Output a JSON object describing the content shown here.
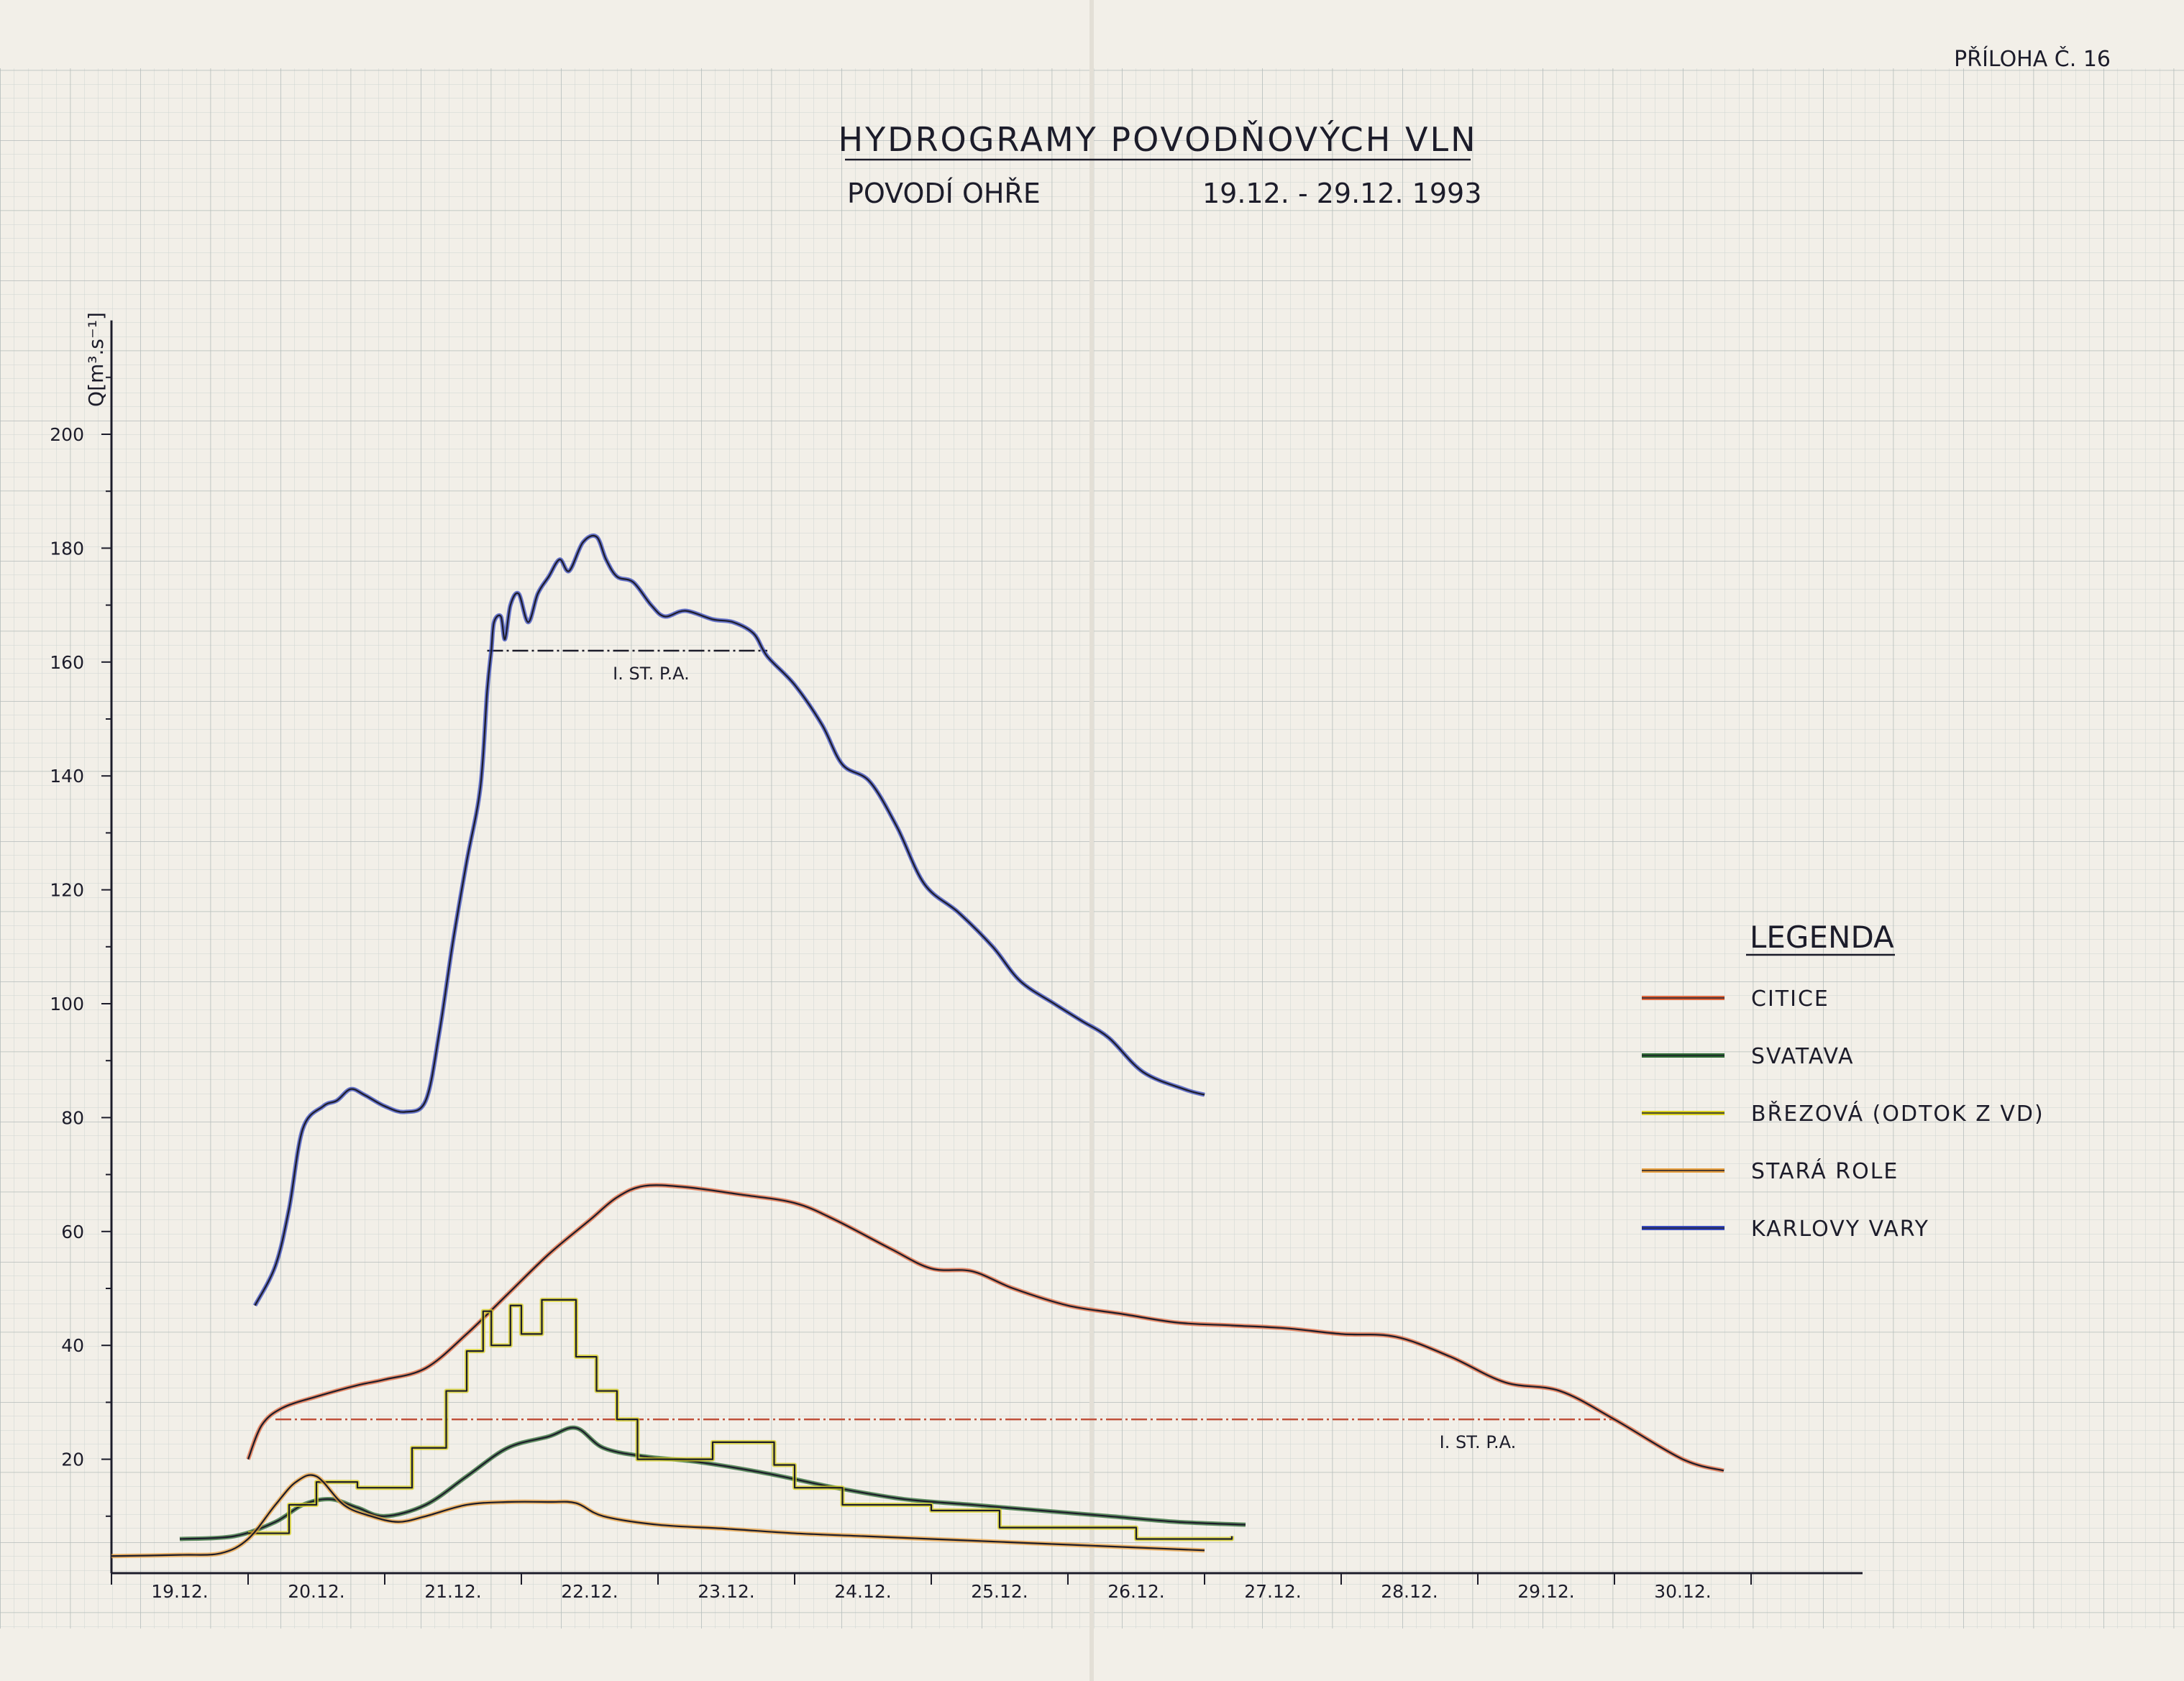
{
  "annex_label": "PŘÍLOHA Č. 16",
  "chart_data": {
    "type": "line",
    "title": "HYDROGRAMY POVODŇOVÝCH VLN",
    "subtitle_left": "POVODÍ OHŘE",
    "subtitle_right": "19.12. - 29.12. 1993",
    "ylabel": "Q[m³.s⁻¹]",
    "xlabel": "",
    "ylim": [
      0,
      200
    ],
    "xlim": [
      0,
      11.0
    ],
    "y_ticks": [
      {
        "value": 20,
        "label": "20"
      },
      {
        "value": 40,
        "label": "40"
      },
      {
        "value": 60,
        "label": "60"
      },
      {
        "value": 80,
        "label": "80"
      },
      {
        "value": 100,
        "label": "100"
      },
      {
        "value": 120,
        "label": "120"
      },
      {
        "value": 140,
        "label": "140"
      },
      {
        "value": 160,
        "label": "160"
      },
      {
        "value": 180,
        "label": "180"
      },
      {
        "value": 200,
        "label": "200"
      }
    ],
    "x_ticks": [
      {
        "pos": 0.5,
        "label": "19.12."
      },
      {
        "pos": 1.5,
        "label": "20.12."
      },
      {
        "pos": 2.5,
        "label": "21.12."
      },
      {
        "pos": 3.5,
        "label": "22.12."
      },
      {
        "pos": 4.5,
        "label": "23.12."
      },
      {
        "pos": 5.5,
        "label": "24.12."
      },
      {
        "pos": 6.5,
        "label": "25.12."
      },
      {
        "pos": 7.5,
        "label": "26.12."
      },
      {
        "pos": 8.5,
        "label": "27.12."
      },
      {
        "pos": 9.5,
        "label": "28.12."
      },
      {
        "pos": 10.5,
        "label": "29.12."
      },
      {
        "pos": 11.5,
        "label": "30.12."
      }
    ],
    "grid": true,
    "legend_title": "LEGENDA",
    "legend_position": "right",
    "series": [
      {
        "name": "CITICE",
        "color": "#e06a40",
        "style": "smooth",
        "points": [
          [
            1.0,
            20
          ],
          [
            1.1,
            26
          ],
          [
            1.25,
            29
          ],
          [
            1.5,
            31
          ],
          [
            1.8,
            33
          ],
          [
            2.0,
            34
          ],
          [
            2.3,
            36
          ],
          [
            2.6,
            42
          ],
          [
            2.9,
            49
          ],
          [
            3.2,
            56
          ],
          [
            3.5,
            62
          ],
          [
            3.7,
            66
          ],
          [
            3.9,
            68
          ],
          [
            4.2,
            67.8
          ],
          [
            4.6,
            66.5
          ],
          [
            5.0,
            65
          ],
          [
            5.3,
            62
          ],
          [
            5.7,
            57
          ],
          [
            6.0,
            53.5
          ],
          [
            6.3,
            53
          ],
          [
            6.6,
            50
          ],
          [
            7.0,
            47
          ],
          [
            7.4,
            45.5
          ],
          [
            7.8,
            44
          ],
          [
            8.2,
            43.5
          ],
          [
            8.6,
            43
          ],
          [
            9.0,
            42
          ],
          [
            9.4,
            41.5
          ],
          [
            9.8,
            38
          ],
          [
            10.2,
            33.5
          ],
          [
            10.6,
            32
          ],
          [
            11.0,
            27
          ],
          [
            11.5,
            20
          ],
          [
            11.8,
            18
          ]
        ]
      },
      {
        "name": "SVATAVA",
        "color": "#2e6b34",
        "style": "smooth",
        "points": [
          [
            0.5,
            6
          ],
          [
            0.9,
            6.5
          ],
          [
            1.2,
            9
          ],
          [
            1.4,
            12
          ],
          [
            1.6,
            13
          ],
          [
            1.8,
            11.5
          ],
          [
            2.0,
            10
          ],
          [
            2.3,
            12
          ],
          [
            2.6,
            17
          ],
          [
            2.9,
            22
          ],
          [
            3.2,
            24
          ],
          [
            3.4,
            25.5
          ],
          [
            3.6,
            22
          ],
          [
            3.9,
            20.5
          ],
          [
            4.3,
            19.5
          ],
          [
            4.8,
            17.5
          ],
          [
            5.3,
            15
          ],
          [
            5.8,
            13
          ],
          [
            6.3,
            12
          ],
          [
            6.8,
            11
          ],
          [
            7.3,
            10
          ],
          [
            7.8,
            9
          ],
          [
            8.3,
            8.5
          ]
        ]
      },
      {
        "name": "BŘEZOVÁ (ODTOK Z VD)",
        "color": "#d8d020",
        "style": "step",
        "points": [
          [
            1.0,
            7
          ],
          [
            1.3,
            7
          ],
          [
            1.3,
            12
          ],
          [
            1.5,
            12
          ],
          [
            1.5,
            16
          ],
          [
            1.8,
            16
          ],
          [
            1.8,
            15
          ],
          [
            2.2,
            15
          ],
          [
            2.2,
            22
          ],
          [
            2.45,
            22
          ],
          [
            2.45,
            32
          ],
          [
            2.6,
            32
          ],
          [
            2.6,
            39
          ],
          [
            2.72,
            39
          ],
          [
            2.72,
            46
          ],
          [
            2.78,
            46
          ],
          [
            2.78,
            40
          ],
          [
            2.92,
            40
          ],
          [
            2.92,
            47
          ],
          [
            3.0,
            47
          ],
          [
            3.0,
            42
          ],
          [
            3.15,
            42
          ],
          [
            3.15,
            48
          ],
          [
            3.4,
            48
          ],
          [
            3.4,
            38
          ],
          [
            3.55,
            38
          ],
          [
            3.55,
            32
          ],
          [
            3.7,
            32
          ],
          [
            3.7,
            27
          ],
          [
            3.85,
            27
          ],
          [
            3.85,
            20
          ],
          [
            4.4,
            20
          ],
          [
            4.4,
            23
          ],
          [
            4.85,
            23
          ],
          [
            4.85,
            19
          ],
          [
            5.0,
            19
          ],
          [
            5.0,
            15
          ],
          [
            5.35,
            15
          ],
          [
            5.35,
            12
          ],
          [
            6.0,
            12
          ],
          [
            6.0,
            11
          ],
          [
            6.5,
            11
          ],
          [
            6.5,
            8
          ],
          [
            7.5,
            8
          ],
          [
            7.5,
            6
          ],
          [
            8.2,
            6
          ],
          [
            8.2,
            6.5
          ]
        ]
      },
      {
        "name": "STARÁ ROLE",
        "color": "#e8a040",
        "style": "smooth",
        "points": [
          [
            0.0,
            3
          ],
          [
            0.5,
            3.2
          ],
          [
            0.8,
            3.5
          ],
          [
            1.0,
            6
          ],
          [
            1.2,
            12
          ],
          [
            1.35,
            16
          ],
          [
            1.5,
            17
          ],
          [
            1.7,
            12
          ],
          [
            1.9,
            10
          ],
          [
            2.1,
            9
          ],
          [
            2.3,
            10
          ],
          [
            2.6,
            12
          ],
          [
            2.9,
            12.5
          ],
          [
            3.2,
            12.5
          ],
          [
            3.4,
            12.3
          ],
          [
            3.6,
            10
          ],
          [
            4.0,
            8.5
          ],
          [
            4.5,
            7.8
          ],
          [
            5.0,
            7
          ],
          [
            5.5,
            6.5
          ],
          [
            6.0,
            6
          ],
          [
            6.5,
            5.5
          ],
          [
            7.0,
            5
          ],
          [
            7.5,
            4.5
          ],
          [
            8.0,
            4
          ]
        ]
      },
      {
        "name": "KARLOVY VARY",
        "color": "#3a4cc0",
        "style": "smooth",
        "points": [
          [
            1.05,
            47
          ],
          [
            1.2,
            54
          ],
          [
            1.3,
            64
          ],
          [
            1.4,
            78
          ],
          [
            1.55,
            82
          ],
          [
            1.65,
            83
          ],
          [
            1.75,
            85
          ],
          [
            1.85,
            84
          ],
          [
            2.0,
            82
          ],
          [
            2.15,
            81
          ],
          [
            2.3,
            83
          ],
          [
            2.4,
            95
          ],
          [
            2.5,
            111
          ],
          [
            2.6,
            125
          ],
          [
            2.7,
            138
          ],
          [
            2.75,
            155
          ],
          [
            2.78,
            162
          ],
          [
            2.8,
            167
          ],
          [
            2.85,
            168
          ],
          [
            2.88,
            164
          ],
          [
            2.92,
            170
          ],
          [
            2.98,
            172
          ],
          [
            3.05,
            167
          ],
          [
            3.12,
            172
          ],
          [
            3.2,
            175
          ],
          [
            3.28,
            178
          ],
          [
            3.35,
            176
          ],
          [
            3.45,
            181
          ],
          [
            3.55,
            182
          ],
          [
            3.62,
            178
          ],
          [
            3.7,
            175
          ],
          [
            3.82,
            174
          ],
          [
            3.95,
            170
          ],
          [
            4.05,
            168
          ],
          [
            4.2,
            169
          ],
          [
            4.4,
            167.5
          ],
          [
            4.55,
            167
          ],
          [
            4.7,
            165
          ],
          [
            4.8,
            161
          ],
          [
            5.0,
            156
          ],
          [
            5.2,
            149
          ],
          [
            5.35,
            142
          ],
          [
            5.55,
            139
          ],
          [
            5.75,
            131
          ],
          [
            5.95,
            121
          ],
          [
            6.2,
            116
          ],
          [
            6.45,
            110
          ],
          [
            6.65,
            104
          ],
          [
            6.9,
            100
          ],
          [
            7.1,
            97
          ],
          [
            7.3,
            94
          ],
          [
            7.55,
            88
          ],
          [
            7.85,
            85
          ],
          [
            8.0,
            84
          ]
        ]
      }
    ],
    "annotations": [
      {
        "text": "I. ST. P.A.",
        "x": 3.95,
        "y": 162,
        "level": 162,
        "from": 2.75,
        "to": 4.8,
        "color": "#1c1c2a"
      },
      {
        "text": "I. ST. P.A.",
        "x": 10.0,
        "y": 27,
        "level": 27,
        "from": 1.2,
        "to": 11.0,
        "color": "#c0503a"
      }
    ]
  }
}
